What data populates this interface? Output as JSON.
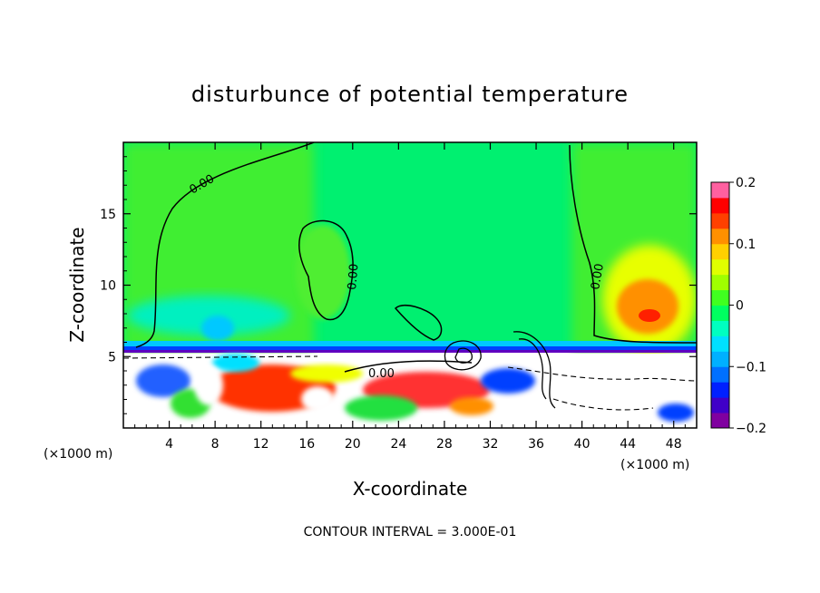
{
  "chart_data": {
    "type": "heatmap",
    "title": "disturbunce of potential temperature",
    "xlabel": "X-coordinate",
    "ylabel": "Z-coordinate",
    "x_unit": "(×1000 m)",
    "x_unit_right": "(×1000 m)",
    "xlim": [
      0,
      50
    ],
    "ylim": [
      0,
      20
    ],
    "x_ticks": [
      4,
      8,
      12,
      16,
      20,
      24,
      28,
      32,
      36,
      40,
      44,
      48
    ],
    "y_ticks": [
      5,
      10,
      15
    ],
    "colorbar": {
      "min": -0.2,
      "max": 0.2,
      "tick_values": [
        0.2,
        0.1,
        0,
        -0.1,
        -0.2
      ],
      "tick_labels": [
        "0.2",
        "0.1",
        "0",
        "−0.1",
        "−0.2"
      ],
      "colors": [
        "#8000a0",
        "#4000c8",
        "#0020ff",
        "#0070ff",
        "#00b0ff",
        "#00e0ff",
        "#00ffc0",
        "#00ff60",
        "#40ff20",
        "#a0ff00",
        "#e0ff00",
        "#ffd000",
        "#ff9000",
        "#ff4000",
        "#ff0000",
        "#ff60a0"
      ]
    },
    "contour_labels": [
      "0.00",
      "0.00",
      "0.00",
      "0.00"
    ],
    "footer": "CONTOUR INTERVAL = 3.000E-01"
  }
}
